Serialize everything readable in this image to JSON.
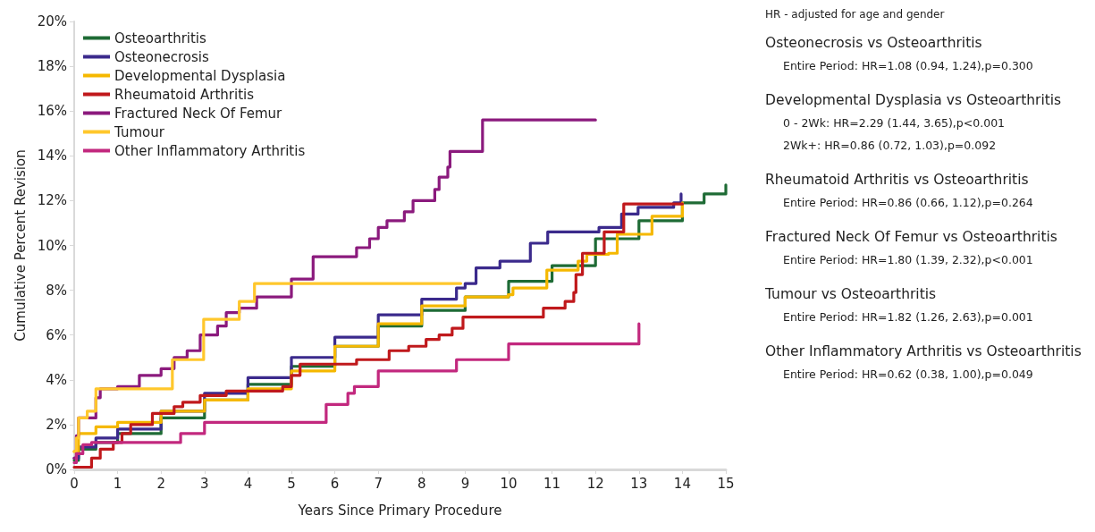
{
  "chart_data": {
    "type": "step",
    "xlabel": "Years Since Primary Procedure",
    "ylabel": "Cumulative Percent Revision",
    "xlim": [
      0,
      15
    ],
    "xticks": [
      0,
      1,
      2,
      3,
      4,
      5,
      6,
      7,
      8,
      9,
      10,
      11,
      12,
      13,
      14,
      15
    ],
    "ylim": [
      0,
      20
    ],
    "yticks": [
      {
        "value": 0,
        "label": "0%"
      },
      {
        "value": 2,
        "label": "2%"
      },
      {
        "value": 4,
        "label": "4%"
      },
      {
        "value": 6,
        "label": "6%"
      },
      {
        "value": 8,
        "label": "8%"
      },
      {
        "value": 10,
        "label": "10%"
      },
      {
        "value": 12,
        "label": "12%"
      },
      {
        "value": 14,
        "label": "14%"
      },
      {
        "value": 16,
        "label": "16%"
      },
      {
        "value": 18,
        "label": "18%"
      },
      {
        "value": 20,
        "label": "20%"
      }
    ],
    "grid": false,
    "legend": "top left",
    "marker": "none",
    "line_style": "solid",
    "series": [
      {
        "name": "Osteoarthritis",
        "color": "#1e6b35",
        "x": [
          0,
          0.1,
          0.5,
          1,
          2,
          3,
          4,
          5,
          6,
          7,
          8,
          9,
          10,
          11,
          12,
          13,
          14,
          14.5,
          15
        ],
        "values": [
          0.4,
          0.9,
          1.2,
          1.6,
          2.3,
          3.1,
          3.8,
          4.6,
          5.5,
          6.4,
          7.1,
          7.7,
          8.4,
          9.1,
          10.3,
          11.1,
          11.9,
          12.3,
          12.7
        ]
      },
      {
        "name": "Osteonecrosis",
        "color": "#3b2a8c",
        "x": [
          0,
          0.1,
          0.5,
          1,
          2,
          3,
          4,
          5,
          6,
          7,
          8,
          8.8,
          9,
          9.25,
          9.8,
          10.5,
          10.9,
          12.08,
          12.6,
          12.98,
          13.8,
          13.97
        ],
        "values": [
          0.5,
          1.0,
          1.4,
          1.8,
          2.6,
          3.4,
          4.1,
          5.0,
          5.9,
          6.9,
          7.6,
          8.1,
          8.3,
          9.0,
          9.3,
          10.1,
          10.6,
          10.8,
          11.4,
          11.7,
          11.9,
          12.3
        ]
      },
      {
        "name": "Developmental Dysplasia",
        "color": "#f5b800",
        "x": [
          0,
          0.1,
          0.5,
          1,
          2,
          3,
          4,
          5,
          6,
          7,
          8,
          9,
          9.99,
          10.1,
          10.88,
          11.6,
          11.8,
          12.3,
          12.5,
          13.2,
          13.3,
          13.97,
          14
        ],
        "values": [
          0.8,
          1.6,
          1.9,
          2.1,
          2.6,
          3.1,
          3.6,
          4.4,
          5.5,
          6.5,
          7.3,
          7.7,
          7.8,
          8.1,
          8.9,
          9.3,
          9.6,
          9.65,
          10.5,
          10.5,
          11.3,
          11.3,
          11.9
        ]
      },
      {
        "name": "Rheumatoid Arthritis",
        "color": "#c0191c",
        "x": [
          0,
          0.4,
          0.6,
          0.9,
          1.1,
          1.3,
          1.8,
          2.3,
          2.5,
          2.9,
          3.5,
          4.8,
          5.0,
          5.2,
          6.5,
          7.25,
          7.7,
          8.1,
          8.4,
          8.7,
          8.95,
          10.8,
          11.3,
          11.5,
          11.55,
          11.7,
          12.2,
          12.65,
          14.0
        ],
        "values": [
          0.1,
          0.5,
          0.9,
          1.2,
          1.6,
          2.0,
          2.5,
          2.8,
          3.0,
          3.3,
          3.5,
          3.7,
          4.2,
          4.7,
          4.9,
          5.3,
          5.5,
          5.8,
          6.0,
          6.3,
          6.8,
          7.2,
          7.5,
          7.9,
          8.7,
          9.65,
          10.6,
          11.85,
          11.85
        ]
      },
      {
        "name": "Fractured Neck Of Femur",
        "color": "#8b1a7d",
        "x": [
          0,
          0.05,
          0.1,
          0.5,
          0.6,
          1.0,
          1.5,
          2,
          2.3,
          2.6,
          2.9,
          3.3,
          3.5,
          3.8,
          4.2,
          5.0,
          5.5,
          6.5,
          6.8,
          7.0,
          7.2,
          7.6,
          7.8,
          8.3,
          8.4,
          8.6,
          8.65,
          9.4,
          12.0
        ],
        "values": [
          0.5,
          1.5,
          2.3,
          3.2,
          3.6,
          3.7,
          4.2,
          4.5,
          5.0,
          5.3,
          6.0,
          6.4,
          7.0,
          7.2,
          7.7,
          8.5,
          9.5,
          9.9,
          10.3,
          10.8,
          11.1,
          11.5,
          12.0,
          12.5,
          13.05,
          13.5,
          14.2,
          15.6,
          15.6
        ]
      },
      {
        "name": "Tumour",
        "color": "#ffc72c",
        "x": [
          0,
          0.05,
          0.1,
          0.3,
          0.5,
          2.26,
          2.98,
          3.8,
          4.15,
          8.9
        ],
        "values": [
          0.8,
          1.4,
          2.3,
          2.6,
          3.6,
          4.9,
          6.7,
          7.5,
          8.3,
          8.3
        ]
      },
      {
        "name": "Other Inflammatory Arthritis",
        "color": "#c2287e",
        "x": [
          0,
          0.05,
          0.2,
          0.4,
          2.45,
          3.0,
          5.8,
          6.3,
          6.45,
          7.0,
          8.8,
          10.0,
          13.0
        ],
        "values": [
          0.3,
          0.7,
          1.1,
          1.2,
          1.6,
          2.1,
          2.9,
          3.4,
          3.7,
          4.4,
          4.9,
          5.6,
          6.5
        ]
      }
    ],
    "annotations": [
      "HR - adjusted for age and gender",
      "Osteonecrosis vs Osteoarthritis",
      "Entire Period: HR=1.08 (0.94, 1.24),p=0.300",
      "Developmental Dysplasia vs Osteoarthritis",
      "0 - 2Wk: HR=2.29 (1.44, 3.65),p<0.001",
      "2Wk+: HR=0.86 (0.72, 1.03),p=0.092",
      "Rheumatoid Arthritis vs Osteoarthritis",
      "Entire Period: HR=0.86 (0.66, 1.12),p=0.264",
      "Fractured Neck Of Femur vs Osteoarthritis",
      "Entire Period: HR=1.80 (1.39, 2.32),p<0.001",
      "Tumour vs Osteoarthritis",
      "Entire Period: HR=1.82 (1.26, 2.63),p=0.001",
      "Other Inflammatory Arthritis vs Osteoarthritis",
      "Entire Period: HR=0.62 (0.38, 1.00),p=0.049"
    ]
  }
}
